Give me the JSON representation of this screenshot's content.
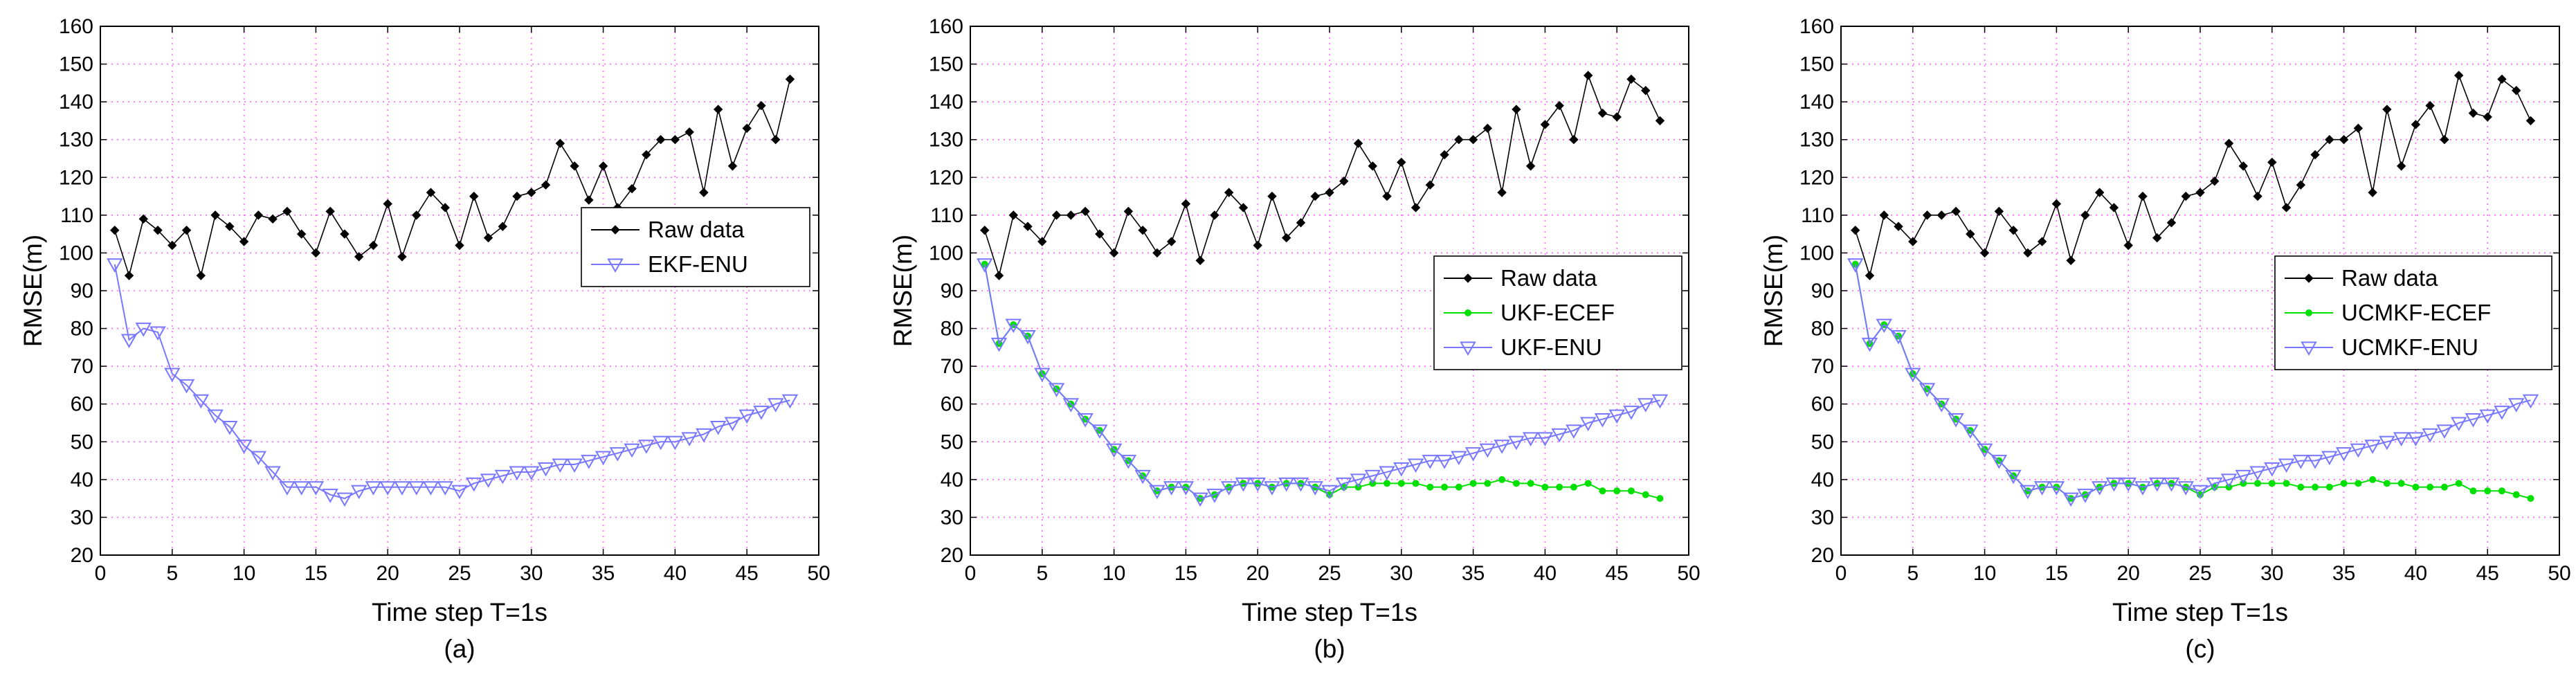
{
  "chart_data": [
    {
      "type": "line",
      "panel_label": "(a)",
      "xlabel": "Time step T=1s",
      "ylabel": "RMSE(m)",
      "xlim": [
        0,
        50
      ],
      "ylim": [
        20,
        160
      ],
      "xticks": [
        "0",
        "5",
        "10",
        "15",
        "20",
        "25",
        "30",
        "35",
        "40",
        "45",
        "50"
      ],
      "yticks": [
        "20",
        "30",
        "40",
        "50",
        "60",
        "70",
        "80",
        "90",
        "100",
        "110",
        "120",
        "130",
        "140",
        "150",
        "160"
      ],
      "grid": true,
      "legend_position": "center-right",
      "series": [
        {
          "name": "Raw data",
          "color": "#000000",
          "marker": "diamond",
          "x": [
            1,
            2,
            3,
            4,
            5,
            6,
            7,
            8,
            9,
            10,
            11,
            12,
            13,
            14,
            15,
            16,
            17,
            18,
            19,
            20,
            21,
            22,
            23,
            24,
            25,
            26,
            27,
            28,
            29,
            30,
            31,
            32,
            33,
            34,
            35,
            36,
            37,
            38,
            39,
            40,
            41,
            42,
            43,
            44,
            45,
            46,
            47,
            48
          ],
          "values": [
            106,
            94,
            109,
            106,
            102,
            106,
            94,
            110,
            107,
            103,
            110,
            109,
            111,
            105,
            100,
            111,
            105,
            99,
            102,
            113,
            99,
            110,
            116,
            112,
            102,
            115,
            104,
            107,
            115,
            116,
            118,
            129,
            123,
            114,
            123,
            112,
            117,
            126,
            130,
            130,
            132,
            116,
            138,
            123,
            133,
            139,
            130,
            146
          ]
        },
        {
          "name": "EKF-ENU",
          "color": "#7777ff",
          "marker": "triangle-down",
          "x": [
            1,
            2,
            3,
            4,
            5,
            6,
            7,
            8,
            9,
            10,
            11,
            12,
            13,
            14,
            15,
            16,
            17,
            18,
            19,
            20,
            21,
            22,
            23,
            24,
            25,
            26,
            27,
            28,
            29,
            30,
            31,
            32,
            33,
            34,
            35,
            36,
            37,
            38,
            39,
            40,
            41,
            42,
            43,
            44,
            45,
            46,
            47,
            48
          ],
          "values": [
            97,
            77,
            80,
            79,
            68,
            65,
            61,
            57,
            54,
            49,
            46,
            42,
            38,
            38,
            38,
            36,
            35,
            37,
            38,
            38,
            38,
            38,
            38,
            38,
            37,
            39,
            40,
            41,
            42,
            42,
            43,
            44,
            44,
            45,
            46,
            47,
            48,
            49,
            50,
            50,
            51,
            52,
            54,
            55,
            57,
            58,
            60,
            61
          ]
        }
      ]
    },
    {
      "type": "line",
      "panel_label": "(b)",
      "xlabel": "Time step T=1s",
      "ylabel": "RMSE(m)",
      "xlim": [
        0,
        50
      ],
      "ylim": [
        20,
        160
      ],
      "xticks": [
        "0",
        "5",
        "10",
        "15",
        "20",
        "25",
        "30",
        "35",
        "40",
        "45",
        "50"
      ],
      "yticks": [
        "20",
        "30",
        "40",
        "50",
        "60",
        "70",
        "80",
        "90",
        "100",
        "110",
        "120",
        "130",
        "140",
        "150",
        "160"
      ],
      "grid": true,
      "legend_position": "center-right",
      "series": [
        {
          "name": "Raw data",
          "color": "#000000",
          "marker": "diamond",
          "x": [
            1,
            2,
            3,
            4,
            5,
            6,
            7,
            8,
            9,
            10,
            11,
            12,
            13,
            14,
            15,
            16,
            17,
            18,
            19,
            20,
            21,
            22,
            23,
            24,
            25,
            26,
            27,
            28,
            29,
            30,
            31,
            32,
            33,
            34,
            35,
            36,
            37,
            38,
            39,
            40,
            41,
            42,
            43,
            44,
            45,
            46,
            47,
            48
          ],
          "values": [
            106,
            94,
            110,
            107,
            103,
            110,
            110,
            111,
            105,
            100,
            111,
            106,
            100,
            103,
            113,
            98,
            110,
            116,
            112,
            102,
            115,
            104,
            108,
            115,
            116,
            119,
            129,
            123,
            115,
            124,
            112,
            118,
            126,
            130,
            130,
            133,
            116,
            138,
            123,
            134,
            139,
            130,
            147,
            137,
            136,
            146,
            143,
            135
          ]
        },
        {
          "name": "UKF-ECEF",
          "color": "#00e000",
          "marker": "dot",
          "x": [
            1,
            2,
            3,
            4,
            5,
            6,
            7,
            8,
            9,
            10,
            11,
            12,
            13,
            14,
            15,
            16,
            17,
            18,
            19,
            20,
            21,
            22,
            23,
            24,
            25,
            26,
            27,
            28,
            29,
            30,
            31,
            32,
            33,
            34,
            35,
            36,
            37,
            38,
            39,
            40,
            41,
            42,
            43,
            44,
            45,
            46,
            47,
            48
          ],
          "values": [
            97,
            76,
            81,
            78,
            68,
            64,
            60,
            56,
            53,
            48,
            45,
            41,
            37,
            38,
            38,
            35,
            36,
            38,
            39,
            39,
            38,
            39,
            39,
            38,
            36,
            38,
            38,
            39,
            39,
            39,
            39,
            38,
            38,
            38,
            39,
            39,
            40,
            39,
            39,
            38,
            38,
            38,
            39,
            37,
            37,
            37,
            36,
            35
          ]
        },
        {
          "name": "UKF-ENU",
          "color": "#7777ff",
          "marker": "triangle-down",
          "x": [
            1,
            2,
            3,
            4,
            5,
            6,
            7,
            8,
            9,
            10,
            11,
            12,
            13,
            14,
            15,
            16,
            17,
            18,
            19,
            20,
            21,
            22,
            23,
            24,
            25,
            26,
            27,
            28,
            29,
            30,
            31,
            32,
            33,
            34,
            35,
            36,
            37,
            38,
            39,
            40,
            41,
            42,
            43,
            44,
            45,
            46,
            47,
            48
          ],
          "values": [
            97,
            76,
            81,
            78,
            68,
            64,
            60,
            56,
            53,
            48,
            45,
            41,
            37,
            38,
            38,
            35,
            36,
            38,
            39,
            39,
            38,
            39,
            39,
            38,
            37,
            39,
            40,
            41,
            42,
            43,
            44,
            45,
            45,
            46,
            47,
            48,
            49,
            50,
            51,
            51,
            52,
            53,
            55,
            56,
            57,
            58,
            60,
            61
          ]
        }
      ]
    },
    {
      "type": "line",
      "panel_label": "(c)",
      "xlabel": "Time step T=1s",
      "ylabel": "RMSE(m)",
      "xlim": [
        0,
        50
      ],
      "ylim": [
        20,
        160
      ],
      "xticks": [
        "0",
        "5",
        "10",
        "15",
        "20",
        "25",
        "30",
        "35",
        "40",
        "45",
        "50"
      ],
      "yticks": [
        "20",
        "30",
        "40",
        "50",
        "60",
        "70",
        "80",
        "90",
        "100",
        "110",
        "120",
        "130",
        "140",
        "150",
        "160"
      ],
      "grid": true,
      "legend_position": "center-right",
      "series": [
        {
          "name": "Raw data",
          "color": "#000000",
          "marker": "diamond",
          "x": [
            1,
            2,
            3,
            4,
            5,
            6,
            7,
            8,
            9,
            10,
            11,
            12,
            13,
            14,
            15,
            16,
            17,
            18,
            19,
            20,
            21,
            22,
            23,
            24,
            25,
            26,
            27,
            28,
            29,
            30,
            31,
            32,
            33,
            34,
            35,
            36,
            37,
            38,
            39,
            40,
            41,
            42,
            43,
            44,
            45,
            46,
            47,
            48
          ],
          "values": [
            106,
            94,
            110,
            107,
            103,
            110,
            110,
            111,
            105,
            100,
            111,
            106,
            100,
            103,
            113,
            98,
            110,
            116,
            112,
            102,
            115,
            104,
            108,
            115,
            116,
            119,
            129,
            123,
            115,
            124,
            112,
            118,
            126,
            130,
            130,
            133,
            116,
            138,
            123,
            134,
            139,
            130,
            147,
            137,
            136,
            146,
            143,
            135
          ]
        },
        {
          "name": "UCMKF-ECEF",
          "color": "#00e000",
          "marker": "dot",
          "x": [
            1,
            2,
            3,
            4,
            5,
            6,
            7,
            8,
            9,
            10,
            11,
            12,
            13,
            14,
            15,
            16,
            17,
            18,
            19,
            20,
            21,
            22,
            23,
            24,
            25,
            26,
            27,
            28,
            29,
            30,
            31,
            32,
            33,
            34,
            35,
            36,
            37,
            38,
            39,
            40,
            41,
            42,
            43,
            44,
            45,
            46,
            47,
            48
          ],
          "values": [
            97,
            76,
            81,
            78,
            68,
            64,
            60,
            56,
            53,
            48,
            45,
            41,
            37,
            38,
            38,
            35,
            36,
            38,
            39,
            39,
            38,
            39,
            39,
            38,
            36,
            38,
            38,
            39,
            39,
            39,
            39,
            38,
            38,
            38,
            39,
            39,
            40,
            39,
            39,
            38,
            38,
            38,
            39,
            37,
            37,
            37,
            36,
            35
          ]
        },
        {
          "name": "UCMKF-ENU",
          "color": "#7777ff",
          "marker": "triangle-down",
          "x": [
            1,
            2,
            3,
            4,
            5,
            6,
            7,
            8,
            9,
            10,
            11,
            12,
            13,
            14,
            15,
            16,
            17,
            18,
            19,
            20,
            21,
            22,
            23,
            24,
            25,
            26,
            27,
            28,
            29,
            30,
            31,
            32,
            33,
            34,
            35,
            36,
            37,
            38,
            39,
            40,
            41,
            42,
            43,
            44,
            45,
            46,
            47,
            48
          ],
          "values": [
            97,
            76,
            81,
            78,
            68,
            64,
            60,
            56,
            53,
            48,
            45,
            41,
            37,
            38,
            38,
            35,
            36,
            38,
            39,
            39,
            38,
            39,
            39,
            38,
            37,
            39,
            40,
            41,
            42,
            43,
            44,
            45,
            45,
            46,
            47,
            48,
            49,
            50,
            51,
            51,
            52,
            53,
            55,
            56,
            57,
            58,
            60,
            61
          ]
        }
      ]
    }
  ]
}
